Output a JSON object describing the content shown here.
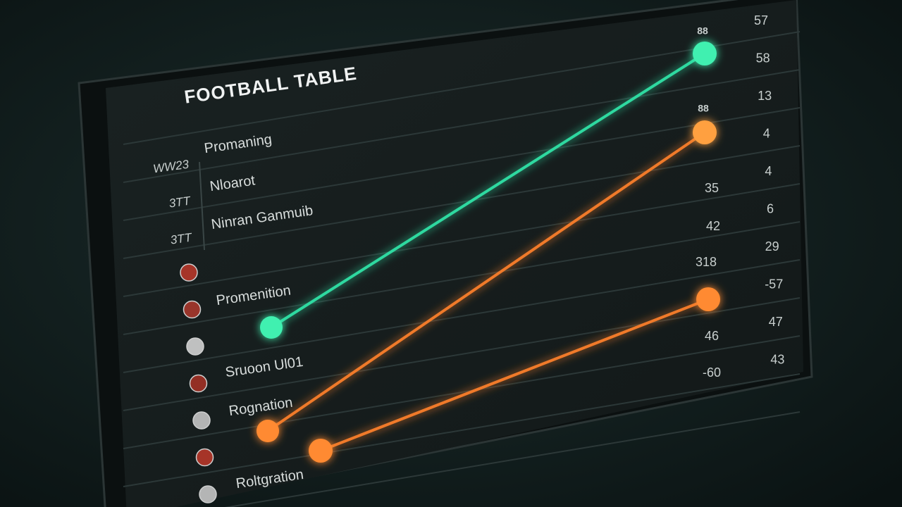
{
  "title": "FOOTBALL TABLE",
  "rows": [
    {
      "code": "WW23",
      "team": "Promaning"
    },
    {
      "code": "3TT",
      "team": "Nloarot"
    },
    {
      "code": "3TT",
      "team": "Ninran Ganmuib"
    }
  ],
  "zone_labels": [
    "Promenition",
    "Sruoon Ul01",
    "Rognation",
    "Roltgration"
  ],
  "middle_values": [
    "35",
    "42",
    "318",
    "46",
    "-60"
  ],
  "right_values": [
    "57",
    "58",
    "13",
    "4",
    "4",
    "6",
    "29",
    "-57",
    "47",
    "43"
  ],
  "marker_labels": [
    "88",
    "88"
  ]
}
